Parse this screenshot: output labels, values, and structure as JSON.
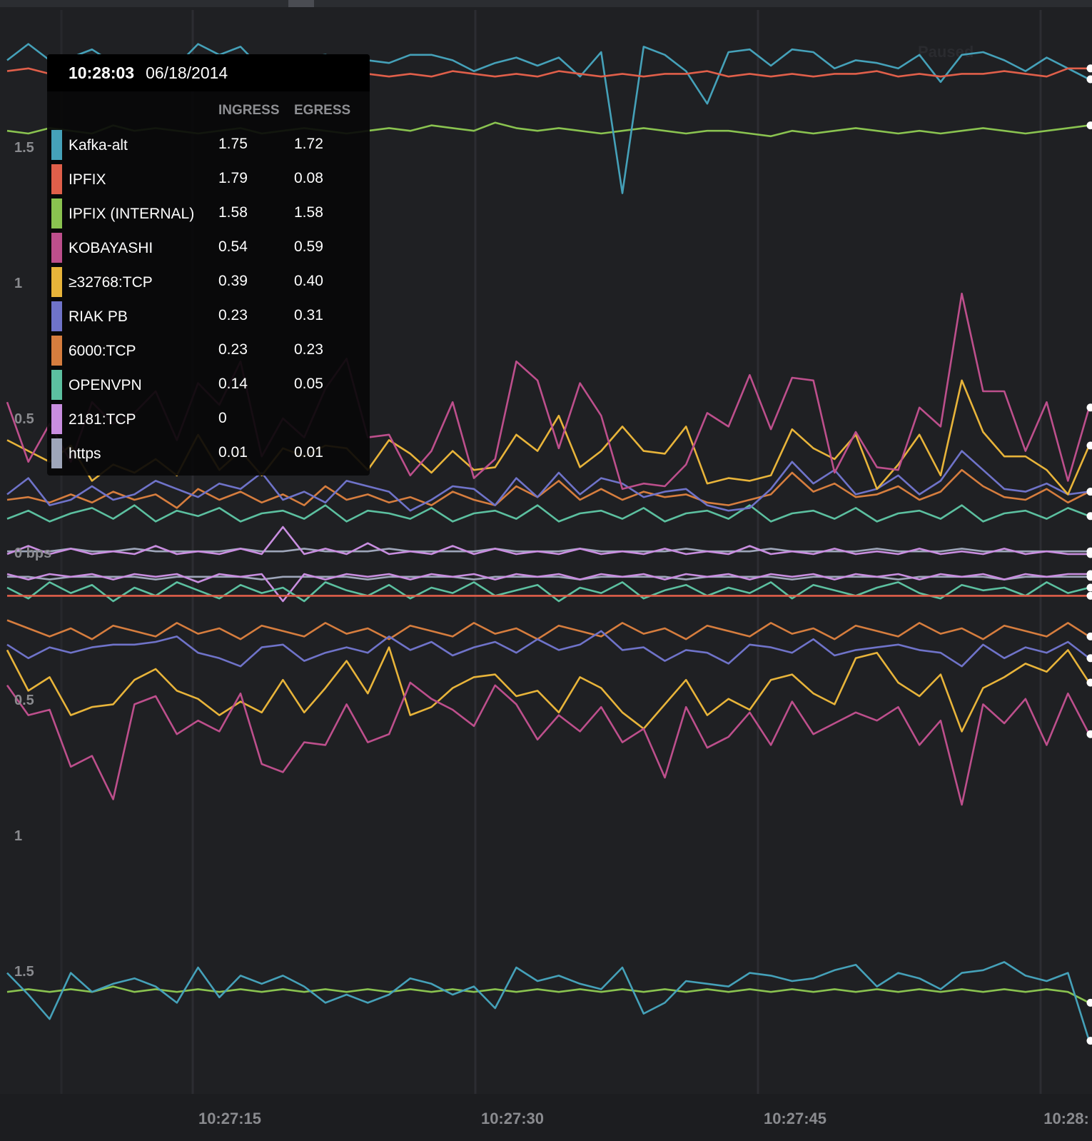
{
  "tooltip": {
    "time": "10:28:03",
    "date": "06/18/2014",
    "col_ingress": "INGRESS",
    "col_egress": "EGRESS",
    "rows": [
      {
        "name": "Kafka-alt",
        "ingress": "1.75",
        "egress": "1.72",
        "color": "#45a1b9"
      },
      {
        "name": "IPFIX",
        "ingress": "1.79",
        "egress": "0.08",
        "color": "#e05f4a"
      },
      {
        "name": "IPFIX (INTERNAL)",
        "ingress": "1.58",
        "egress": "1.58",
        "color": "#8ac350"
      },
      {
        "name": "KOBAYASHI",
        "ingress": "0.54",
        "egress": "0.59",
        "color": "#bd4f8c"
      },
      {
        "name": "≥32768:TCP",
        "ingress": "0.39",
        "egress": "0.40",
        "color": "#e8b43a"
      },
      {
        "name": "RIAK PB",
        "ingress": "0.23",
        "egress": "0.31",
        "color": "#6f73c9"
      },
      {
        "name": "6000:TCP",
        "ingress": "0.23",
        "egress": "0.23",
        "color": "#d67d3e"
      },
      {
        "name": "OPENVPN",
        "ingress": "0.14",
        "egress": "0.05",
        "color": "#5cc0a0"
      },
      {
        "name": "2181:TCP",
        "ingress": "0",
        "egress": "",
        "color": "#c98ee0"
      },
      {
        "name": "https",
        "ingress": "0.01",
        "egress": "0.01",
        "color": "#9ea6ba"
      }
    ]
  },
  "status": {
    "paused_label": "Paused"
  },
  "chart_data": {
    "type": "line",
    "mirror_layout": "ingress above zero, egress mirrored below zero",
    "y_ticks_top": [
      "1.5",
      "1",
      "0.5"
    ],
    "zero_label": "0 bps",
    "y_ticks_bottom": [
      "0.5",
      "1",
      "1.5"
    ],
    "x_ticks": [
      "10:27:15",
      "10:27:30",
      "10:27:45",
      "10:28:"
    ],
    "x_range": [
      0,
      51
    ],
    "y_range": [
      -2.0,
      2.0
    ],
    "series": [
      {
        "name": "Kafka-alt",
        "color": "#45a1b9",
        "ingress": [
          1.82,
          1.88,
          1.82,
          1.83,
          1.86,
          1.81,
          1.79,
          1.77,
          1.8,
          1.88,
          1.84,
          1.87,
          1.79,
          1.8,
          1.83,
          1.84,
          1.82,
          1.82,
          1.81,
          1.84,
          1.84,
          1.82,
          1.78,
          1.81,
          1.83,
          1.8,
          1.83,
          1.76,
          1.85,
          1.33,
          1.87,
          1.84,
          1.78,
          1.66,
          1.85,
          1.86,
          1.8,
          1.86,
          1.85,
          1.79,
          1.82,
          1.81,
          1.79,
          1.84,
          1.74,
          1.84,
          1.85,
          1.82,
          1.78,
          1.83,
          1.79,
          1.75
        ],
        "egress": [
          1.47,
          1.55,
          1.64,
          1.47,
          1.54,
          1.51,
          1.49,
          1.52,
          1.58,
          1.45,
          1.56,
          1.48,
          1.51,
          1.48,
          1.52,
          1.58,
          1.55,
          1.58,
          1.55,
          1.49,
          1.51,
          1.55,
          1.52,
          1.6,
          1.45,
          1.5,
          1.48,
          1.51,
          1.53,
          1.45,
          1.62,
          1.58,
          1.5,
          1.51,
          1.52,
          1.47,
          1.48,
          1.5,
          1.49,
          1.46,
          1.44,
          1.52,
          1.47,
          1.49,
          1.53,
          1.47,
          1.46,
          1.43,
          1.48,
          1.5,
          1.47,
          1.72
        ]
      },
      {
        "name": "IPFIX",
        "color": "#e05f4a",
        "ingress": [
          1.78,
          1.79,
          1.77,
          1.78,
          1.76,
          1.77,
          1.78,
          1.77,
          1.76,
          1.78,
          1.76,
          1.77,
          1.78,
          1.76,
          1.77,
          1.77,
          1.78,
          1.77,
          1.76,
          1.77,
          1.76,
          1.78,
          1.77,
          1.76,
          1.77,
          1.76,
          1.78,
          1.77,
          1.76,
          1.77,
          1.76,
          1.77,
          1.77,
          1.78,
          1.76,
          1.77,
          1.76,
          1.77,
          1.76,
          1.77,
          1.77,
          1.78,
          1.76,
          1.77,
          1.76,
          1.77,
          1.77,
          1.78,
          1.77,
          1.76,
          1.79,
          1.79
        ],
        "egress": [
          0.08,
          0.08,
          0.08,
          0.08,
          0.08,
          0.08,
          0.08,
          0.08,
          0.08,
          0.08,
          0.08,
          0.08,
          0.08,
          0.08,
          0.08,
          0.08,
          0.08,
          0.08,
          0.08,
          0.08,
          0.08,
          0.08,
          0.08,
          0.08,
          0.08,
          0.08,
          0.08,
          0.08,
          0.08,
          0.08,
          0.08,
          0.08,
          0.08,
          0.08,
          0.08,
          0.08,
          0.08,
          0.08,
          0.08,
          0.08,
          0.08,
          0.08,
          0.08,
          0.08,
          0.08,
          0.08,
          0.08,
          0.08,
          0.08,
          0.08,
          0.08,
          0.08
        ]
      },
      {
        "name": "IPFIX (INTERNAL)",
        "color": "#8ac350",
        "ingress": [
          1.56,
          1.55,
          1.57,
          1.56,
          1.55,
          1.58,
          1.56,
          1.57,
          1.56,
          1.55,
          1.56,
          1.57,
          1.55,
          1.56,
          1.57,
          1.56,
          1.55,
          1.56,
          1.57,
          1.56,
          1.58,
          1.57,
          1.56,
          1.59,
          1.57,
          1.56,
          1.57,
          1.56,
          1.55,
          1.56,
          1.57,
          1.56,
          1.55,
          1.56,
          1.56,
          1.55,
          1.54,
          1.56,
          1.55,
          1.56,
          1.57,
          1.56,
          1.55,
          1.56,
          1.55,
          1.56,
          1.57,
          1.56,
          1.55,
          1.56,
          1.57,
          1.58
        ],
        "egress": [
          1.54,
          1.53,
          1.54,
          1.53,
          1.54,
          1.52,
          1.54,
          1.53,
          1.54,
          1.53,
          1.54,
          1.53,
          1.54,
          1.53,
          1.54,
          1.53,
          1.54,
          1.53,
          1.54,
          1.53,
          1.54,
          1.53,
          1.54,
          1.53,
          1.54,
          1.53,
          1.54,
          1.53,
          1.54,
          1.53,
          1.54,
          1.53,
          1.54,
          1.53,
          1.54,
          1.53,
          1.54,
          1.53,
          1.54,
          1.53,
          1.54,
          1.53,
          1.54,
          1.53,
          1.54,
          1.53,
          1.54,
          1.53,
          1.54,
          1.53,
          1.54,
          1.58
        ]
      },
      {
        "name": "KOBAYASHI",
        "color": "#bd4f8c",
        "ingress": [
          0.56,
          0.34,
          0.48,
          0.34,
          0.56,
          0.48,
          0.52,
          0.6,
          0.42,
          0.63,
          0.55,
          0.71,
          0.36,
          0.5,
          0.43,
          0.61,
          0.72,
          0.43,
          0.44,
          0.29,
          0.38,
          0.56,
          0.28,
          0.35,
          0.71,
          0.64,
          0.39,
          0.63,
          0.51,
          0.24,
          0.26,
          0.25,
          0.33,
          0.52,
          0.47,
          0.66,
          0.46,
          0.65,
          0.64,
          0.3,
          0.45,
          0.32,
          0.31,
          0.54,
          0.47,
          0.96,
          0.6,
          0.6,
          0.38,
          0.56,
          0.27,
          0.54
        ],
        "egress": [
          0.41,
          0.52,
          0.5,
          0.71,
          0.67,
          0.83,
          0.48,
          0.45,
          0.59,
          0.54,
          0.58,
          0.44,
          0.7,
          0.73,
          0.62,
          0.63,
          0.48,
          0.62,
          0.59,
          0.4,
          0.46,
          0.5,
          0.56,
          0.41,
          0.48,
          0.61,
          0.52,
          0.58,
          0.49,
          0.62,
          0.57,
          0.75,
          0.49,
          0.64,
          0.6,
          0.51,
          0.63,
          0.47,
          0.59,
          0.55,
          0.51,
          0.54,
          0.49,
          0.63,
          0.54,
          0.85,
          0.48,
          0.55,
          0.46,
          0.63,
          0.44,
          0.59
        ]
      },
      {
        "name": "≥32768:TCP",
        "color": "#e8b43a",
        "ingress": [
          0.42,
          0.38,
          0.34,
          0.4,
          0.27,
          0.33,
          0.3,
          0.35,
          0.29,
          0.44,
          0.31,
          0.38,
          0.29,
          0.39,
          0.36,
          0.4,
          0.39,
          0.31,
          0.42,
          0.37,
          0.3,
          0.38,
          0.31,
          0.32,
          0.44,
          0.38,
          0.51,
          0.32,
          0.38,
          0.47,
          0.38,
          0.37,
          0.47,
          0.26,
          0.28,
          0.27,
          0.29,
          0.46,
          0.39,
          0.35,
          0.44,
          0.24,
          0.33,
          0.44,
          0.29,
          0.64,
          0.45,
          0.36,
          0.36,
          0.31,
          0.22,
          0.4
        ],
        "egress": [
          0.28,
          0.43,
          0.38,
          0.52,
          0.49,
          0.48,
          0.39,
          0.35,
          0.43,
          0.46,
          0.52,
          0.47,
          0.51,
          0.39,
          0.51,
          0.42,
          0.32,
          0.44,
          0.27,
          0.52,
          0.49,
          0.42,
          0.38,
          0.37,
          0.45,
          0.43,
          0.51,
          0.38,
          0.42,
          0.51,
          0.57,
          0.48,
          0.39,
          0.52,
          0.46,
          0.5,
          0.39,
          0.37,
          0.44,
          0.48,
          0.31,
          0.29,
          0.4,
          0.45,
          0.37,
          0.58,
          0.42,
          0.38,
          0.33,
          0.36,
          0.28,
          0.4
        ]
      },
      {
        "name": "RIAK PB",
        "color": "#6f73c9",
        "ingress": [
          0.22,
          0.28,
          0.18,
          0.2,
          0.25,
          0.2,
          0.22,
          0.27,
          0.24,
          0.21,
          0.26,
          0.24,
          0.3,
          0.2,
          0.23,
          0.19,
          0.27,
          0.25,
          0.23,
          0.16,
          0.2,
          0.25,
          0.24,
          0.18,
          0.28,
          0.21,
          0.3,
          0.22,
          0.28,
          0.26,
          0.21,
          0.23,
          0.24,
          0.18,
          0.16,
          0.17,
          0.24,
          0.34,
          0.26,
          0.31,
          0.22,
          0.24,
          0.29,
          0.22,
          0.27,
          0.38,
          0.31,
          0.24,
          0.23,
          0.26,
          0.22,
          0.23
        ],
        "egress": [
          0.26,
          0.31,
          0.27,
          0.29,
          0.27,
          0.26,
          0.26,
          0.25,
          0.23,
          0.29,
          0.31,
          0.34,
          0.27,
          0.26,
          0.32,
          0.29,
          0.27,
          0.29,
          0.23,
          0.28,
          0.25,
          0.3,
          0.27,
          0.25,
          0.29,
          0.24,
          0.28,
          0.26,
          0.21,
          0.28,
          0.27,
          0.32,
          0.28,
          0.29,
          0.33,
          0.26,
          0.27,
          0.29,
          0.24,
          0.3,
          0.28,
          0.27,
          0.26,
          0.28,
          0.29,
          0.34,
          0.26,
          0.31,
          0.27,
          0.29,
          0.25,
          0.31
        ]
      },
      {
        "name": "6000:TCP",
        "color": "#d67d3e",
        "ingress": [
          0.2,
          0.21,
          0.19,
          0.22,
          0.19,
          0.23,
          0.2,
          0.22,
          0.17,
          0.24,
          0.2,
          0.23,
          0.19,
          0.22,
          0.18,
          0.25,
          0.2,
          0.22,
          0.19,
          0.21,
          0.18,
          0.23,
          0.2,
          0.18,
          0.25,
          0.21,
          0.27,
          0.2,
          0.24,
          0.2,
          0.23,
          0.21,
          0.22,
          0.19,
          0.18,
          0.2,
          0.22,
          0.3,
          0.23,
          0.26,
          0.21,
          0.22,
          0.25,
          0.2,
          0.23,
          0.31,
          0.25,
          0.21,
          0.2,
          0.24,
          0.19,
          0.23
        ],
        "egress": [
          0.17,
          0.2,
          0.23,
          0.2,
          0.24,
          0.19,
          0.21,
          0.23,
          0.18,
          0.22,
          0.2,
          0.24,
          0.19,
          0.21,
          0.23,
          0.18,
          0.22,
          0.2,
          0.24,
          0.19,
          0.21,
          0.23,
          0.18,
          0.22,
          0.2,
          0.24,
          0.19,
          0.21,
          0.23,
          0.18,
          0.22,
          0.2,
          0.24,
          0.19,
          0.21,
          0.23,
          0.18,
          0.22,
          0.2,
          0.24,
          0.19,
          0.21,
          0.23,
          0.18,
          0.22,
          0.2,
          0.24,
          0.19,
          0.21,
          0.23,
          0.18,
          0.23
        ]
      },
      {
        "name": "OPENVPN",
        "color": "#5cc0a0",
        "ingress": [
          0.13,
          0.16,
          0.12,
          0.15,
          0.17,
          0.13,
          0.18,
          0.12,
          0.16,
          0.14,
          0.17,
          0.12,
          0.15,
          0.16,
          0.13,
          0.18,
          0.12,
          0.16,
          0.15,
          0.13,
          0.17,
          0.12,
          0.15,
          0.16,
          0.13,
          0.18,
          0.12,
          0.15,
          0.16,
          0.13,
          0.17,
          0.12,
          0.15,
          0.16,
          0.13,
          0.18,
          0.12,
          0.15,
          0.16,
          0.13,
          0.17,
          0.12,
          0.15,
          0.16,
          0.13,
          0.18,
          0.12,
          0.15,
          0.16,
          0.13,
          0.17,
          0.14
        ],
        "egress": [
          0.05,
          0.09,
          0.03,
          0.07,
          0.04,
          0.1,
          0.05,
          0.08,
          0.03,
          0.06,
          0.09,
          0.04,
          0.07,
          0.05,
          0.1,
          0.03,
          0.06,
          0.08,
          0.04,
          0.09,
          0.05,
          0.07,
          0.03,
          0.08,
          0.06,
          0.04,
          0.1,
          0.05,
          0.07,
          0.03,
          0.09,
          0.06,
          0.04,
          0.08,
          0.05,
          0.07,
          0.03,
          0.09,
          0.04,
          0.06,
          0.08,
          0.05,
          0.03,
          0.07,
          0.09,
          0.04,
          0.06,
          0.05,
          0.08,
          0.03,
          0.07,
          0.05
        ]
      },
      {
        "name": "2181:TCP",
        "color": "#c98ee0",
        "ingress": [
          0.0,
          0.03,
          0.0,
          0.02,
          0.0,
          0.01,
          0.0,
          0.03,
          0.0,
          0.01,
          0.0,
          0.02,
          0.0,
          0.1,
          0.0,
          0.02,
          0.0,
          0.04,
          0.0,
          0.01,
          0.0,
          0.03,
          0.0,
          0.02,
          0.0,
          0.01,
          0.0,
          0.02,
          0.0,
          0.01,
          0.0,
          0.02,
          0.0,
          0.01,
          0.0,
          0.03,
          0.0,
          0.01,
          0.0,
          0.02,
          0.0,
          0.01,
          0.0,
          0.02,
          0.0,
          0.01,
          0.0,
          0.02,
          0.0,
          0.01,
          0.0,
          0.0
        ],
        "egress": [
          0.0,
          0.02,
          0.0,
          0.01,
          0.0,
          0.02,
          0.0,
          0.01,
          0.0,
          0.03,
          0.0,
          0.01,
          0.0,
          0.1,
          0.0,
          0.02,
          0.0,
          0.01,
          0.0,
          0.02,
          0.0,
          0.01,
          0.0,
          0.02,
          0.0,
          0.01,
          0.0,
          0.02,
          0.0,
          0.01,
          0.0,
          0.02,
          0.0,
          0.01,
          0.0,
          0.02,
          0.0,
          0.01,
          0.0,
          0.02,
          0.0,
          0.01,
          0.0,
          0.02,
          0.0,
          0.01,
          0.0,
          0.02,
          0.0,
          0.01,
          0.0,
          0.0
        ]
      },
      {
        "name": "https",
        "color": "#9ea6ba",
        "ingress": [
          0.01,
          0.01,
          0.01,
          0.02,
          0.01,
          0.01,
          0.02,
          0.01,
          0.01,
          0.01,
          0.01,
          0.02,
          0.01,
          0.01,
          0.02,
          0.01,
          0.01,
          0.01,
          0.02,
          0.01,
          0.01,
          0.01,
          0.01,
          0.02,
          0.01,
          0.01,
          0.01,
          0.02,
          0.01,
          0.01,
          0.01,
          0.01,
          0.02,
          0.01,
          0.01,
          0.01,
          0.02,
          0.01,
          0.01,
          0.01,
          0.01,
          0.02,
          0.01,
          0.01,
          0.01,
          0.02,
          0.01,
          0.01,
          0.01,
          0.01,
          0.01,
          0.01
        ],
        "egress": [
          0.01,
          0.01,
          0.02,
          0.01,
          0.01,
          0.01,
          0.01,
          0.02,
          0.01,
          0.01,
          0.01,
          0.01,
          0.02,
          0.01,
          0.01,
          0.01,
          0.01,
          0.02,
          0.01,
          0.01,
          0.01,
          0.01,
          0.02,
          0.01,
          0.01,
          0.01,
          0.01,
          0.02,
          0.01,
          0.01,
          0.01,
          0.01,
          0.02,
          0.01,
          0.01,
          0.01,
          0.01,
          0.02,
          0.01,
          0.01,
          0.01,
          0.01,
          0.02,
          0.01,
          0.01,
          0.01,
          0.01,
          0.02,
          0.01,
          0.01,
          0.01,
          0.01
        ]
      }
    ]
  }
}
